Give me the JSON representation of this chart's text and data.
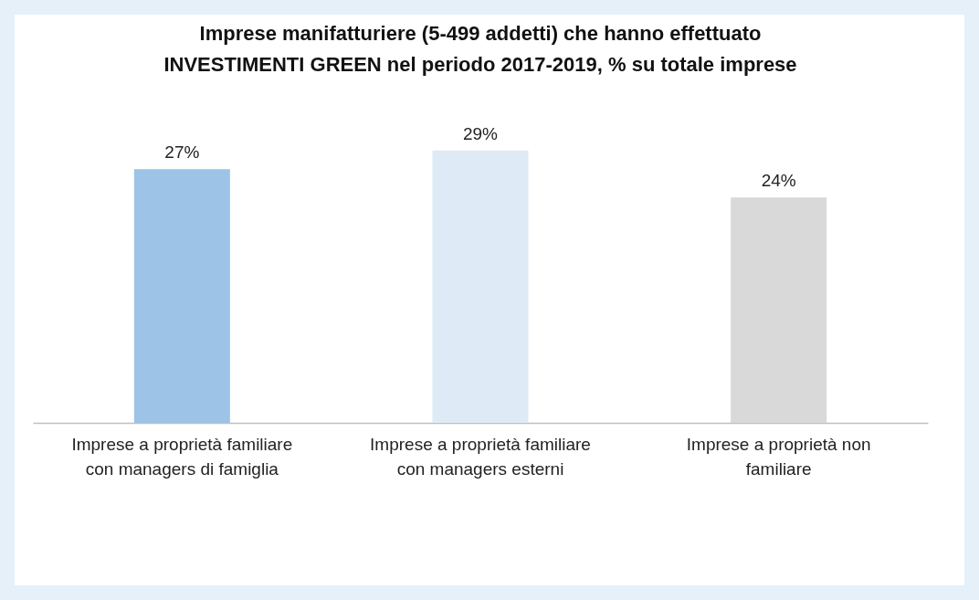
{
  "chart_data": {
    "type": "bar",
    "title": "Imprese manifatturiere (5-499 addetti) che hanno effettuato INVESTIMENTI GREEN nel periodo 2017-2019, % su totale imprese",
    "categories": [
      "Imprese a proprietà familiare con managers di famiglia",
      "Imprese a proprietà familiare con managers esterni",
      "Imprese a proprietà non familiare"
    ],
    "values": [
      27,
      29,
      24
    ],
    "value_labels": [
      "27%",
      "29%",
      "24%"
    ],
    "colors": [
      "#9dc3e6",
      "#deebf7",
      "#d9d9d9"
    ],
    "grid": false
  }
}
